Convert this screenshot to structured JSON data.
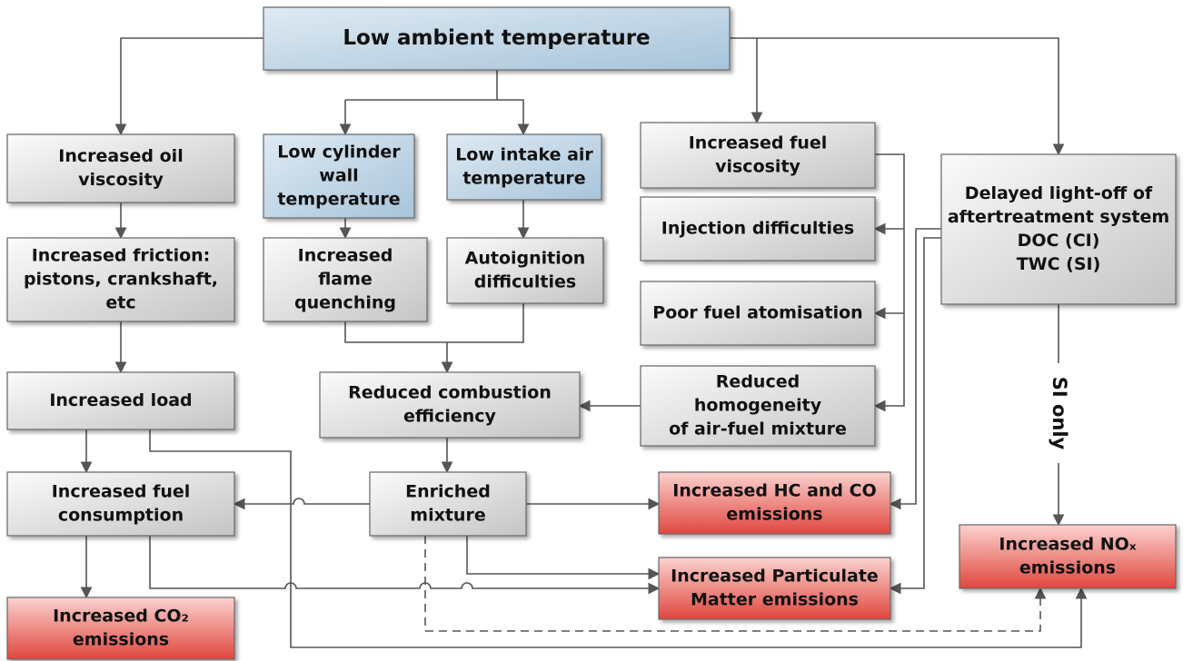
{
  "nodes": [
    {
      "lines": [
        "Low ambient temperature"
      ]
    },
    {
      "lines": [
        "Increased oil",
        "viscosity"
      ]
    },
    {
      "lines": [
        "Low cylinder",
        "wall",
        "temperature"
      ]
    },
    {
      "lines": [
        "Low intake air",
        "temperature"
      ]
    },
    {
      "lines": [
        "Increased fuel",
        "viscosity"
      ]
    },
    {
      "lines": [
        "Delayed light-off of",
        "aftertreatment system",
        "DOC (CI)",
        "TWC (SI)"
      ]
    },
    {
      "lines": [
        "Increased friction:",
        "pistons, crankshaft,",
        "etc"
      ]
    },
    {
      "lines": [
        "Increased",
        "flame",
        "quenching"
      ]
    },
    {
      "lines": [
        "Autoignition",
        "difficulties"
      ]
    },
    {
      "lines": [
        "Injection difficulties"
      ]
    },
    {
      "lines": [
        "Poor fuel atomisation"
      ]
    },
    {
      "lines": [
        "Reduced",
        "homogeneity",
        "of air-fuel mixture"
      ]
    },
    {
      "lines": [
        "Reduced combustion",
        "efficiency"
      ]
    },
    {
      "lines": [
        "Increased load"
      ]
    },
    {
      "lines": [
        "Increased fuel",
        "consumption"
      ]
    },
    {
      "lines": [
        "Enriched",
        "mixture"
      ]
    },
    {
      "lines": [
        "Increased HC and CO",
        "emissions"
      ]
    },
    {
      "lines": [
        "Increased Particulate",
        "Matter emissions"
      ]
    },
    {
      "lines": [
        "Increased NOₓ",
        "emissions"
      ]
    },
    {
      "lines": [
        "Increased CO₂",
        "emissions"
      ]
    }
  ],
  "edge_label": "SI only"
}
